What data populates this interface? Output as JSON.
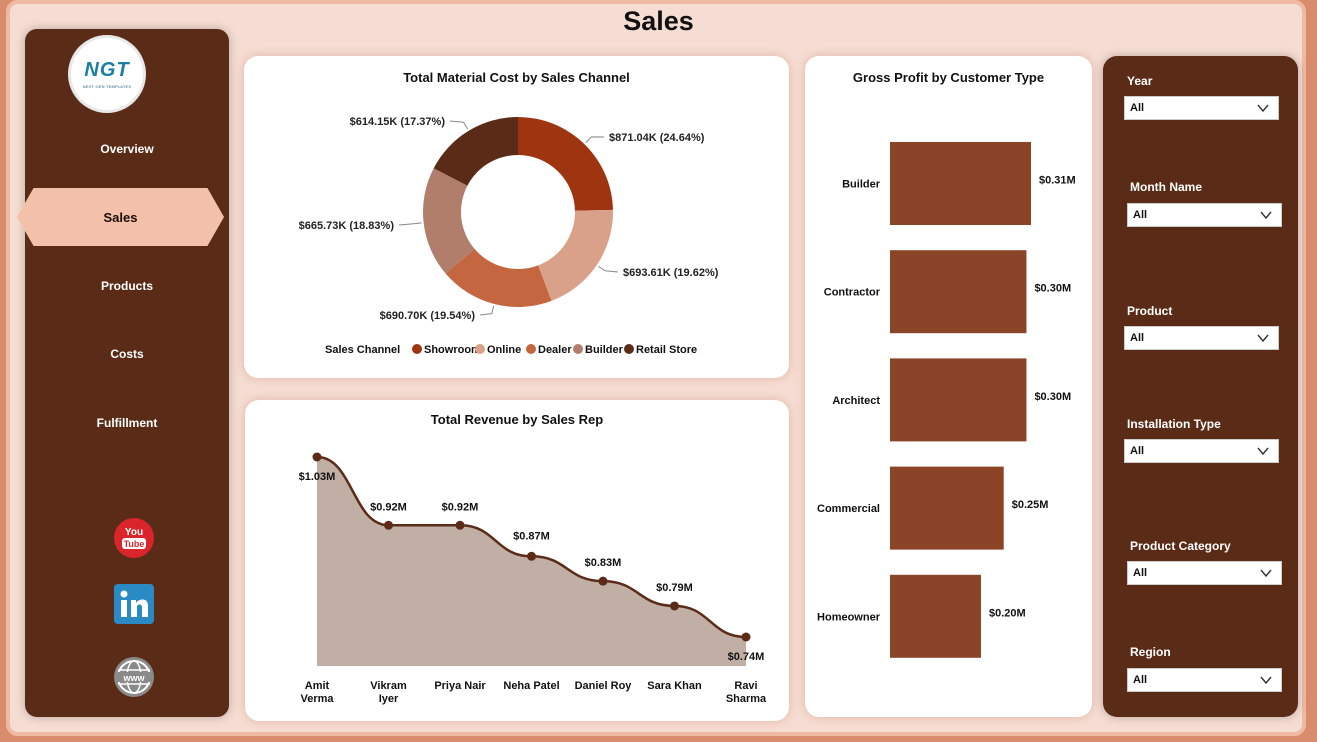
{
  "page": {
    "title": "Sales"
  },
  "logo": {
    "main": "NGT",
    "sub": "NEXT GEN TEMPLATES"
  },
  "nav": {
    "items": [
      {
        "label": "Overview",
        "active": false
      },
      {
        "label": "Sales",
        "active": true
      },
      {
        "label": "Products",
        "active": false
      },
      {
        "label": "Costs",
        "active": false
      },
      {
        "label": "Fulfillment",
        "active": false
      }
    ],
    "social": [
      "youtube-icon",
      "linkedin-icon",
      "website-icon"
    ]
  },
  "colors": {
    "dark_brown": "#5a2c18",
    "accent": "#f3c0a9",
    "background": "#f6ddd3",
    "bar": "#8b4427"
  },
  "donut": {
    "title": "Total Material Cost by Sales Channel",
    "legend_title": "Sales Channel",
    "chart_data": {
      "type": "pie",
      "categories": [
        "Showroom",
        "Online",
        "Dealer",
        "Builder",
        "Retail Store"
      ],
      "values": [
        871.04,
        693.61,
        690.7,
        665.73,
        614.15
      ],
      "unit": "K",
      "labels": [
        "$871.04K (24.64%)",
        "$693.61K (19.62%)",
        "$690.70K (19.54%)",
        "$665.73K (18.83%)",
        "$614.15K (17.37%)"
      ],
      "colors": [
        "#9e3510",
        "#d9a18a",
        "#c4663f",
        "#b07e6a",
        "#5a2c18"
      ]
    }
  },
  "revenue": {
    "title": "Total Revenue by Sales Rep",
    "chart_data": {
      "type": "area",
      "categories": [
        "Amit Verma",
        "Vikram Iyer",
        "Priya Nair",
        "Neha Patel",
        "Daniel Roy",
        "Sara Khan",
        "Ravi Sharma"
      ],
      "category_lines": [
        [
          "Amit",
          "Verma"
        ],
        [
          "Vikram",
          "Iyer"
        ],
        [
          "Priya Nair"
        ],
        [
          "Neha Patel"
        ],
        [
          "Daniel Roy"
        ],
        [
          "Sara Khan"
        ],
        [
          "Ravi",
          "Sharma"
        ]
      ],
      "values": [
        1.03,
        0.92,
        0.92,
        0.87,
        0.83,
        0.79,
        0.74
      ],
      "labels": [
        "$1.03M",
        "$0.92M",
        "$0.92M",
        "$0.87M",
        "$0.83M",
        "$0.79M",
        "$0.74M"
      ],
      "unit": "M"
    }
  },
  "gross": {
    "title": "Gross Profit by Customer Type",
    "chart_data": {
      "type": "bar",
      "orientation": "horizontal",
      "categories": [
        "Builder",
        "Contractor",
        "Architect",
        "Commercial",
        "Homeowner"
      ],
      "values": [
        0.31,
        0.3,
        0.3,
        0.25,
        0.2
      ],
      "labels": [
        "$0.31M",
        "$0.30M",
        "$0.30M",
        "$0.25M",
        "$0.20M"
      ],
      "unit": "M"
    }
  },
  "filters": [
    {
      "label": "Year",
      "value": "All"
    },
    {
      "label": "Month Name",
      "value": "All"
    },
    {
      "label": "Product",
      "value": "All"
    },
    {
      "label": "Installation Type",
      "value": "All"
    },
    {
      "label": "Product Category",
      "value": "All"
    },
    {
      "label": "Region",
      "value": "All"
    }
  ]
}
